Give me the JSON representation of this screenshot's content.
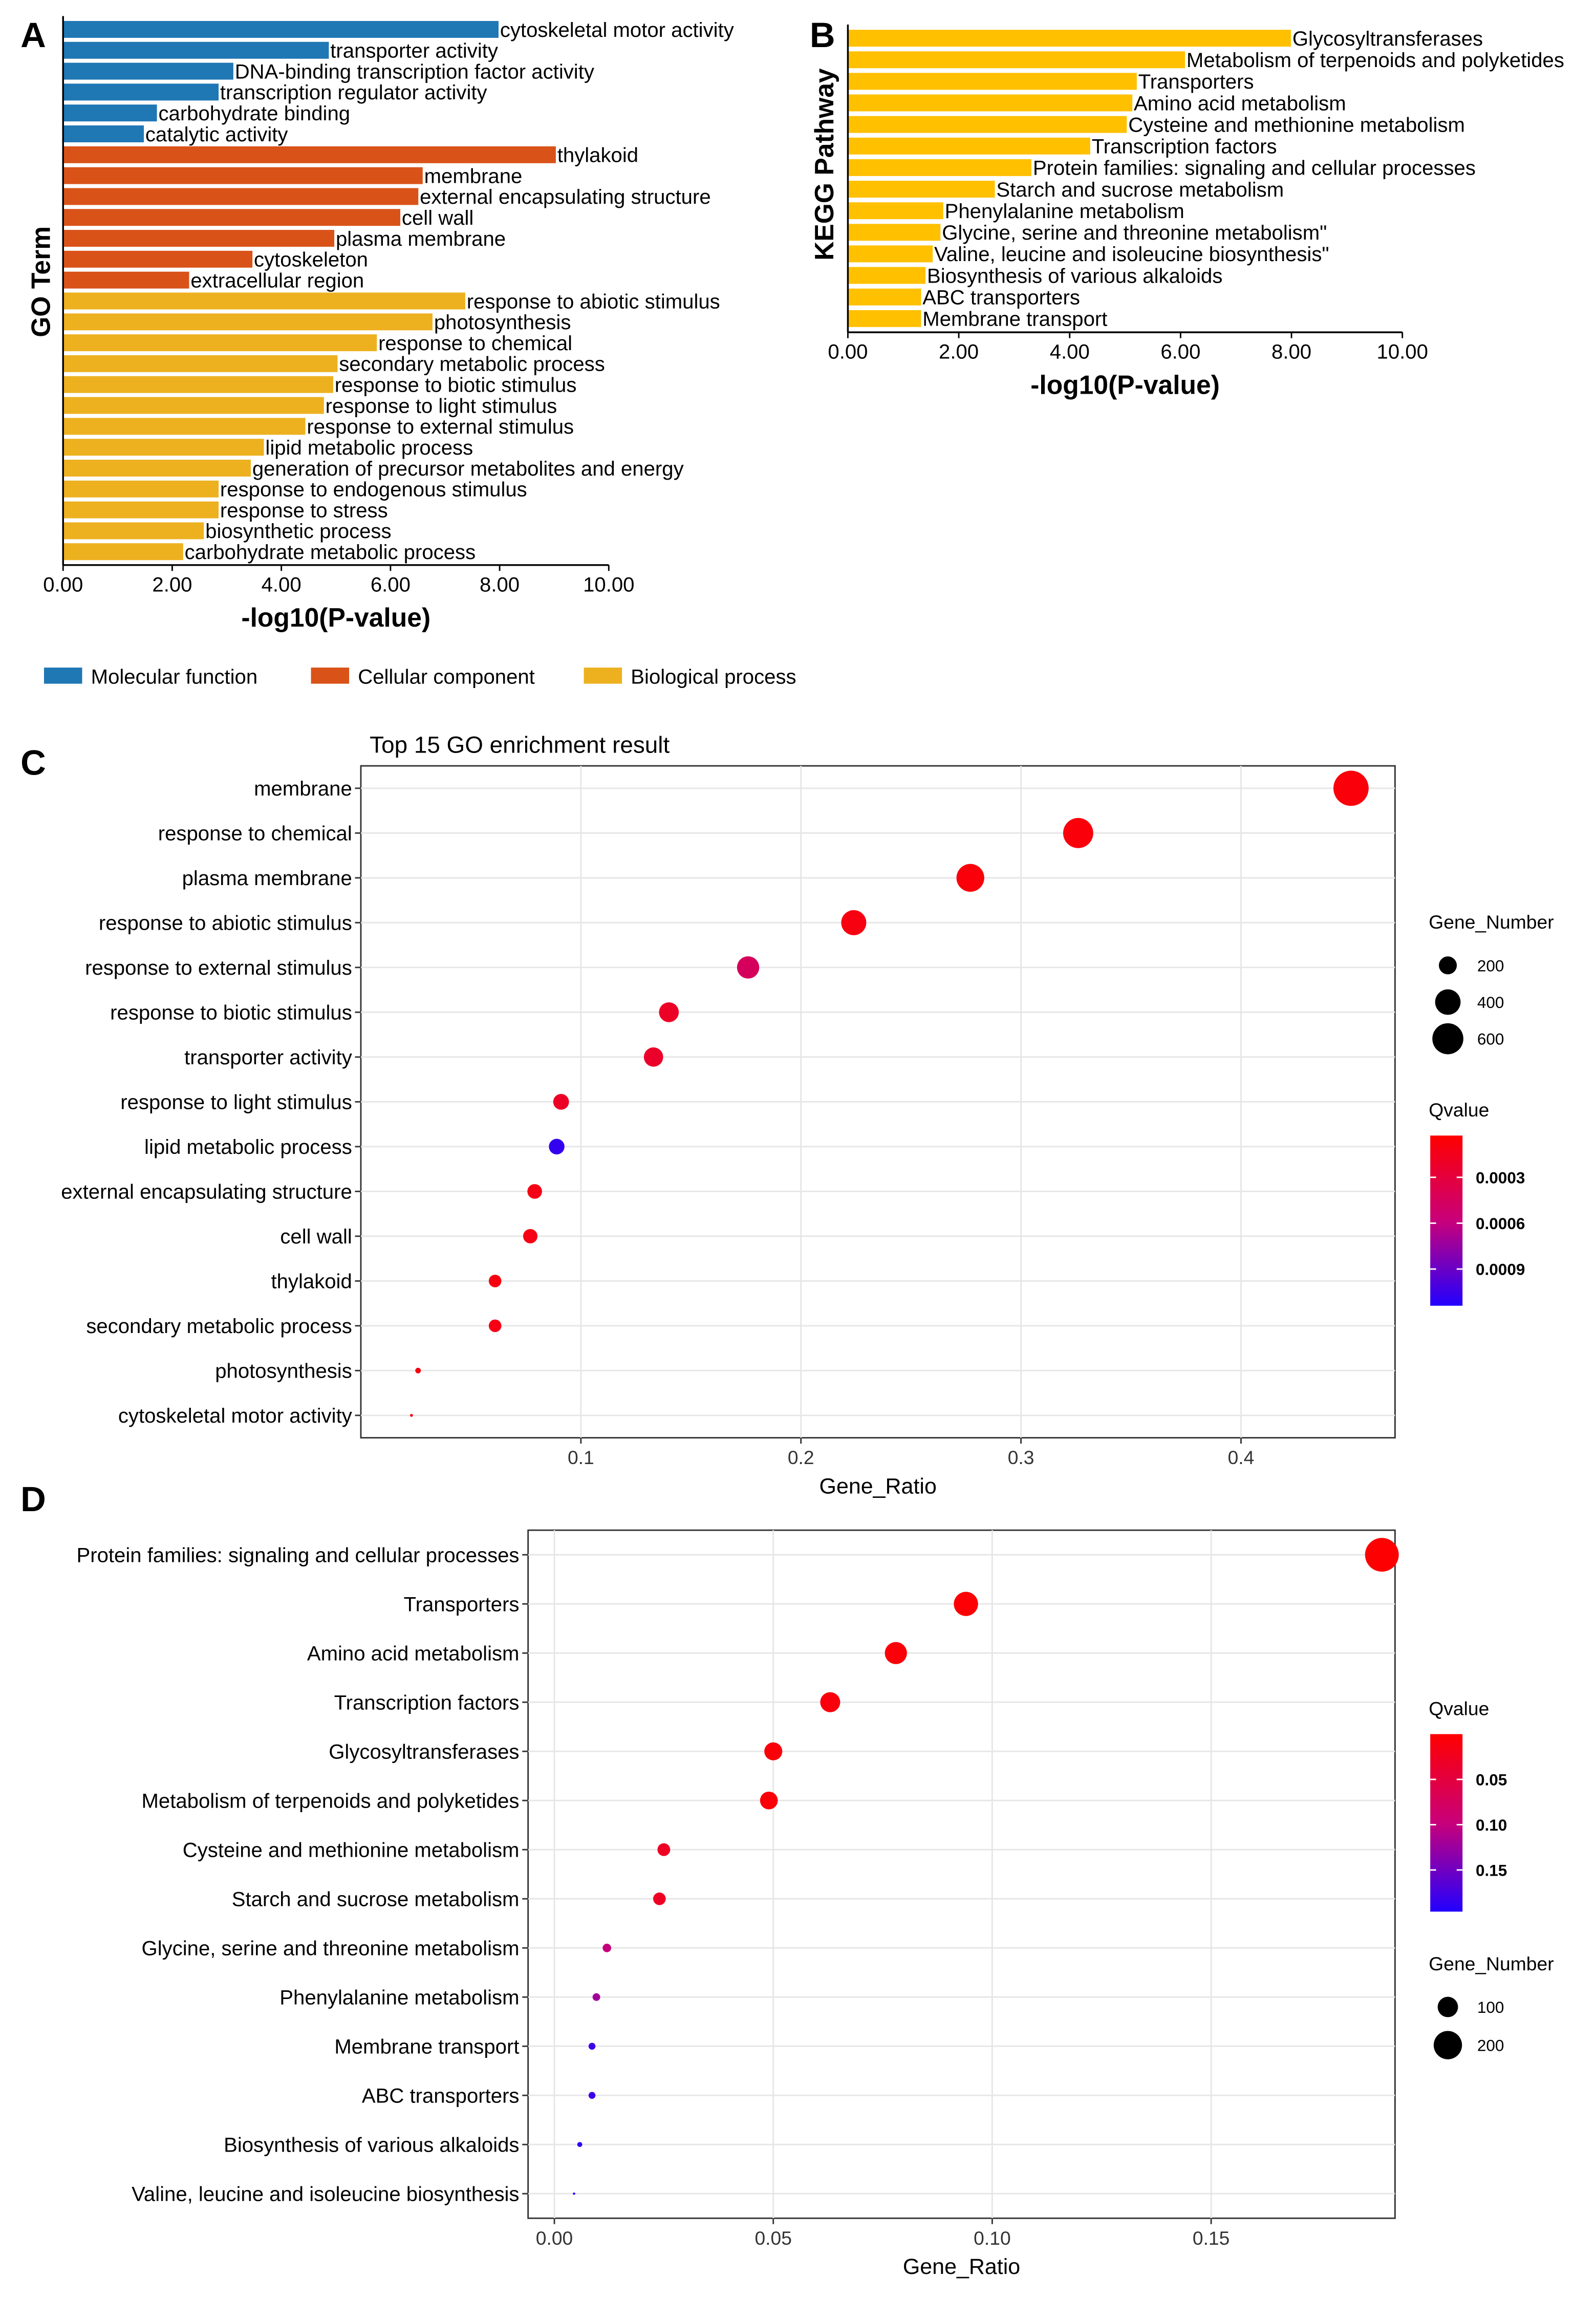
{
  "panels": {
    "a": "A",
    "b": "B",
    "c": "C",
    "d": "D"
  },
  "colors": {
    "mf": "#1f77b4",
    "cc": "#d95319",
    "bp": "#edb120",
    "kegg": "#ffc000",
    "q_low": "#ff0000",
    "q_high": "#2200ff"
  },
  "chart_data": [
    {
      "type": "bar",
      "orientation": "horizontal",
      "xlabel": "-log10(P-value)",
      "ylabel": "GO Term",
      "xlim": [
        0,
        10
      ],
      "xticks": [
        "0.00",
        "2.00",
        "4.00",
        "6.00",
        "8.00",
        "10.00"
      ],
      "legend": {
        "position": "bottom",
        "entries": [
          {
            "key": "mf",
            "label": "Molecular function"
          },
          {
            "key": "cc",
            "label": "Cellular component"
          },
          {
            "key": "bp",
            "label": "Biological process"
          }
        ]
      },
      "bars": [
        {
          "label": "cytoskeletal motor activity",
          "value": 7.98,
          "group": "mf"
        },
        {
          "label": "transporter activity",
          "value": 4.87,
          "group": "mf"
        },
        {
          "label": "DNA-binding transcription factor activity",
          "value": 3.12,
          "group": "mf"
        },
        {
          "label": "transcription regulator activity",
          "value": 2.85,
          "group": "mf"
        },
        {
          "label": "carbohydrate binding",
          "value": 1.72,
          "group": "mf"
        },
        {
          "label": "catalytic activity",
          "value": 1.48,
          "group": "mf"
        },
        {
          "label": "thylakoid",
          "value": 9.03,
          "group": "cc"
        },
        {
          "label": "membrane",
          "value": 6.59,
          "group": "cc"
        },
        {
          "label": "external encapsulating structure",
          "value": 6.51,
          "group": "cc"
        },
        {
          "label": "cell wall",
          "value": 6.18,
          "group": "cc"
        },
        {
          "label": "plasma membrane",
          "value": 4.97,
          "group": "cc"
        },
        {
          "label": "cytoskeleton",
          "value": 3.47,
          "group": "cc"
        },
        {
          "label": "extracellular region",
          "value": 2.31,
          "group": "cc"
        },
        {
          "label": "response to abiotic stimulus",
          "value": 7.37,
          "group": "bp"
        },
        {
          "label": "photosynthesis",
          "value": 6.77,
          "group": "bp"
        },
        {
          "label": "response to chemical",
          "value": 5.75,
          "group": "bp"
        },
        {
          "label": "secondary metabolic process",
          "value": 5.03,
          "group": "bp"
        },
        {
          "label": "response to biotic stimulus",
          "value": 4.95,
          "group": "bp"
        },
        {
          "label": "response to light stimulus",
          "value": 4.78,
          "group": "bp"
        },
        {
          "label": "response to external stimulus",
          "value": 4.44,
          "group": "bp"
        },
        {
          "label": "lipid metabolic process",
          "value": 3.68,
          "group": "bp"
        },
        {
          "label": "generation of precursor metabolites and energy",
          "value": 3.44,
          "group": "bp"
        },
        {
          "label": "response to endogenous stimulus",
          "value": 2.85,
          "group": "bp"
        },
        {
          "label": "response to stress",
          "value": 2.85,
          "group": "bp"
        },
        {
          "label": "biosynthetic process",
          "value": 2.58,
          "group": "bp"
        },
        {
          "label": "carbohydrate metabolic process",
          "value": 2.2,
          "group": "bp"
        }
      ]
    },
    {
      "type": "bar",
      "orientation": "horizontal",
      "xlabel": "-log10(P-value)",
      "ylabel": "KEGG Pathway",
      "xlim": [
        0,
        10
      ],
      "xticks": [
        "0.00",
        "2.00",
        "4.00",
        "6.00",
        "8.00",
        "10.00"
      ],
      "bars": [
        {
          "label": "Glycosyltransferases",
          "value": 7.99
        },
        {
          "label": "Metabolism of terpenoids and polyketides",
          "value": 6.08
        },
        {
          "label": "Transporters",
          "value": 5.21
        },
        {
          "label": "Amino acid metabolism",
          "value": 5.13
        },
        {
          "label": "Cysteine and methionine metabolism",
          "value": 5.03
        },
        {
          "label": "Transcription factors",
          "value": 4.37
        },
        {
          "label": "Protein families: signaling and cellular processes",
          "value": 3.31
        },
        {
          "label": "Starch and sucrose metabolism",
          "value": 2.65
        },
        {
          "label": "Phenylalanine metabolism",
          "value": 1.72
        },
        {
          "label": "Glycine, serine and threonine metabolism\"",
          "value": 1.67
        },
        {
          "label": "Valine, leucine and isoleucine biosynthesis\"",
          "value": 1.53
        },
        {
          "label": "Biosynthesis of various alkaloids",
          "value": 1.4
        },
        {
          "label": "ABC transporters",
          "value": 1.32
        },
        {
          "label": "Membrane transport",
          "value": 1.32
        }
      ]
    },
    {
      "type": "scatter",
      "title": "Top 15 GO enrichment result",
      "xlabel": "Gene_Ratio",
      "xlim": [
        0,
        0.47
      ],
      "xticks": [
        "0.1",
        "0.2",
        "0.3",
        "0.4"
      ],
      "grid": true,
      "size_legend": {
        "title": "Gene_Number",
        "values": [
          200,
          400,
          600
        ]
      },
      "color_legend": {
        "title": "Qvalue",
        "ticks": [
          "0.0003",
          "0.0006",
          "0.0009"
        ],
        "range": [
          2.7e-05,
          0.00114
        ]
      },
      "points": [
        {
          "label": "membrane",
          "ratio": 0.45,
          "genes": 779,
          "q": 8e-05
        },
        {
          "label": "response to chemical",
          "ratio": 0.326,
          "genes": 564,
          "q": 8e-05
        },
        {
          "label": "plasma membrane",
          "ratio": 0.277,
          "genes": 479,
          "q": 8e-05
        },
        {
          "label": "response to abiotic stimulus",
          "ratio": 0.224,
          "genes": 388,
          "q": 0.0001
        },
        {
          "label": "response to external stimulus",
          "ratio": 0.176,
          "genes": 305,
          "q": 0.00045
        },
        {
          "label": "response to biotic stimulus",
          "ratio": 0.14,
          "genes": 242,
          "q": 0.0002
        },
        {
          "label": "transporter activity",
          "ratio": 0.133,
          "genes": 230,
          "q": 0.00022
        },
        {
          "label": "response to light stimulus",
          "ratio": 0.091,
          "genes": 157,
          "q": 0.0002
        },
        {
          "label": "lipid metabolic process",
          "ratio": 0.089,
          "genes": 154,
          "q": 0.00108
        },
        {
          "label": "external encapsulating structure",
          "ratio": 0.079,
          "genes": 137,
          "q": 0.00012
        },
        {
          "label": "cell wall",
          "ratio": 0.077,
          "genes": 133,
          "q": 0.00012
        },
        {
          "label": "thylakoid",
          "ratio": 0.061,
          "genes": 106,
          "q": 0.0001
        },
        {
          "label": "secondary metabolic process",
          "ratio": 0.061,
          "genes": 106,
          "q": 0.00012
        },
        {
          "label": "photosynthesis",
          "ratio": 0.026,
          "genes": 45,
          "q": 0.0001
        },
        {
          "label": "cytoskeletal motor activity",
          "ratio": 0.023,
          "genes": 40,
          "q": 0.0001
        }
      ]
    },
    {
      "type": "scatter",
      "title": "",
      "xlabel": "Gene_Ratio",
      "xlim": [
        -0.006,
        0.192
      ],
      "xticks": [
        "0.00",
        "0.05",
        "0.10",
        "0.15"
      ],
      "grid": true,
      "size_legend": {
        "title": "Gene_Number",
        "values": [
          100,
          200
        ]
      },
      "color_legend": {
        "title": "Qvalue",
        "ticks": [
          "0.05",
          "0.10",
          "0.15"
        ],
        "range": [
          0,
          0.196
        ]
      },
      "points": [
        {
          "label": "Protein families: signaling and cellular processes",
          "ratio": 0.189,
          "genes": 289,
          "q": 0.002
        },
        {
          "label": "Transporters",
          "ratio": 0.094,
          "genes": 144,
          "q": 0.005
        },
        {
          "label": "Amino acid metabolism",
          "ratio": 0.078,
          "genes": 119,
          "q": 0.008
        },
        {
          "label": "Transcription factors",
          "ratio": 0.063,
          "genes": 96,
          "q": 0.01
        },
        {
          "label": "Glycosyltransferases",
          "ratio": 0.05,
          "genes": 77,
          "q": 0.008
        },
        {
          "label": "Metabolism of terpenoids and polyketides",
          "ratio": 0.049,
          "genes": 75,
          "q": 0.008
        },
        {
          "label": "Cysteine and methionine metabolism",
          "ratio": 0.025,
          "genes": 38,
          "q": 0.03
        },
        {
          "label": "Starch and sucrose metabolism",
          "ratio": 0.024,
          "genes": 37,
          "q": 0.03
        },
        {
          "label": "Glycine, serine and threonine metabolism",
          "ratio": 0.012,
          "genes": 18,
          "q": 0.1
        },
        {
          "label": "Phenylalanine metabolism",
          "ratio": 0.0096,
          "genes": 15,
          "q": 0.12
        },
        {
          "label": "Membrane transport",
          "ratio": 0.0086,
          "genes": 13,
          "q": 0.18
        },
        {
          "label": "ABC transporters",
          "ratio": 0.0086,
          "genes": 13,
          "q": 0.18
        },
        {
          "label": "Biosynthesis of various alkaloids",
          "ratio": 0.0058,
          "genes": 9,
          "q": 0.19
        },
        {
          "label": "Valine, leucine and isoleucine biosynthesis",
          "ratio": 0.0045,
          "genes": 7,
          "q": 0.19
        }
      ]
    }
  ]
}
